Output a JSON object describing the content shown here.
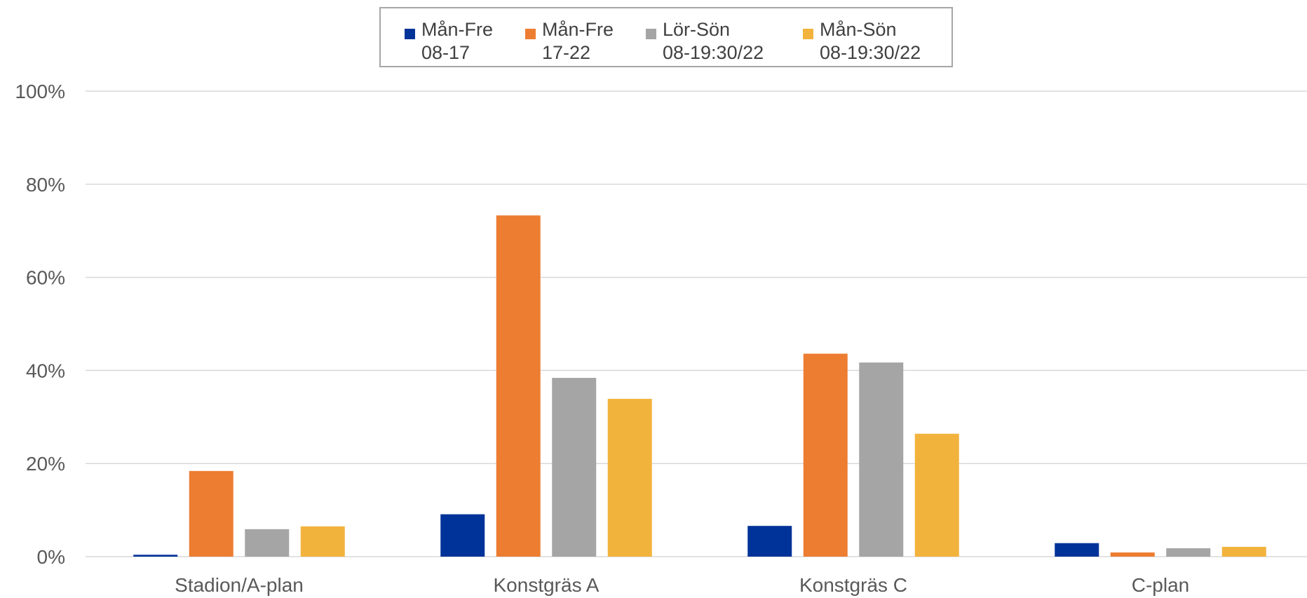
{
  "chart_data": {
    "type": "bar",
    "categories": [
      "Stadion/A-plan",
      "Konstgräs A",
      "Konstgräs C",
      "C-plan"
    ],
    "series": [
      {
        "name": "Mån-Fre\n08-17",
        "color": "#003399",
        "values": [
          0.4,
          9.1,
          6.6,
          2.9
        ]
      },
      {
        "name": "Mån-Fre\n17-22",
        "color": "#ed7d31",
        "values": [
          18.4,
          73.3,
          43.6,
          0.9
        ]
      },
      {
        "name": "Lör-Sön\n08-19:30/22",
        "color": "#a5a5a5",
        "values": [
          5.9,
          38.4,
          41.7,
          1.8
        ]
      },
      {
        "name": "Mån-Sön\n08-19:30/22",
        "color": "#f2b33d",
        "values": [
          6.5,
          33.9,
          26.4,
          2.1
        ]
      }
    ],
    "ylim": [
      0,
      100
    ],
    "yticks": [
      0,
      20,
      40,
      60,
      80,
      100
    ],
    "ytick_labels": [
      "0%",
      "20%",
      "40%",
      "60%",
      "80%",
      "100%"
    ],
    "title": "",
    "xlabel": "",
    "ylabel": "",
    "grid": true,
    "legend_position": "top"
  }
}
